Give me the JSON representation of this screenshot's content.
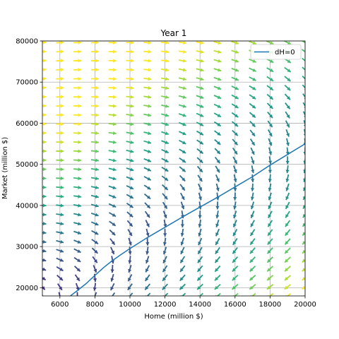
{
  "chart_data": {
    "type": "quiver",
    "title": "Year 1",
    "xlabel": "Home (million $)",
    "ylabel": "Market (million $)",
    "xlim": [
      5000,
      20000
    ],
    "ylim": [
      18000,
      80000
    ],
    "xticks": [
      6000,
      8000,
      10000,
      12000,
      14000,
      16000,
      18000,
      20000
    ],
    "yticks": [
      20000,
      30000,
      40000,
      50000,
      60000,
      70000,
      80000
    ],
    "grid": true,
    "legend": {
      "location": "top-right",
      "entries": [
        "dH=0"
      ]
    },
    "colormap": "viridis",
    "colors": {
      "line": "#1f77b4",
      "grid": "#b0b0b0"
    },
    "quiver_grid": {
      "x_start": 5000,
      "x_step": 1000,
      "x_count": 16,
      "y_start": 18000,
      "y_step": 2200,
      "y_count": 29
    },
    "series": [
      {
        "name": "dH=0",
        "type": "line",
        "x": [
          6600,
          7000,
          7500,
          8000,
          8500,
          9000,
          9500,
          10000,
          11000,
          12000,
          13000,
          14000,
          15000,
          16000,
          17000,
          18000,
          19000,
          20000
        ],
        "y": [
          18000,
          19300,
          21000,
          23000,
          24900,
          26600,
          28100,
          29500,
          32200,
          34700,
          37200,
          39600,
          42000,
          44500,
          47000,
          49800,
          52400,
          55000
        ]
      }
    ]
  }
}
